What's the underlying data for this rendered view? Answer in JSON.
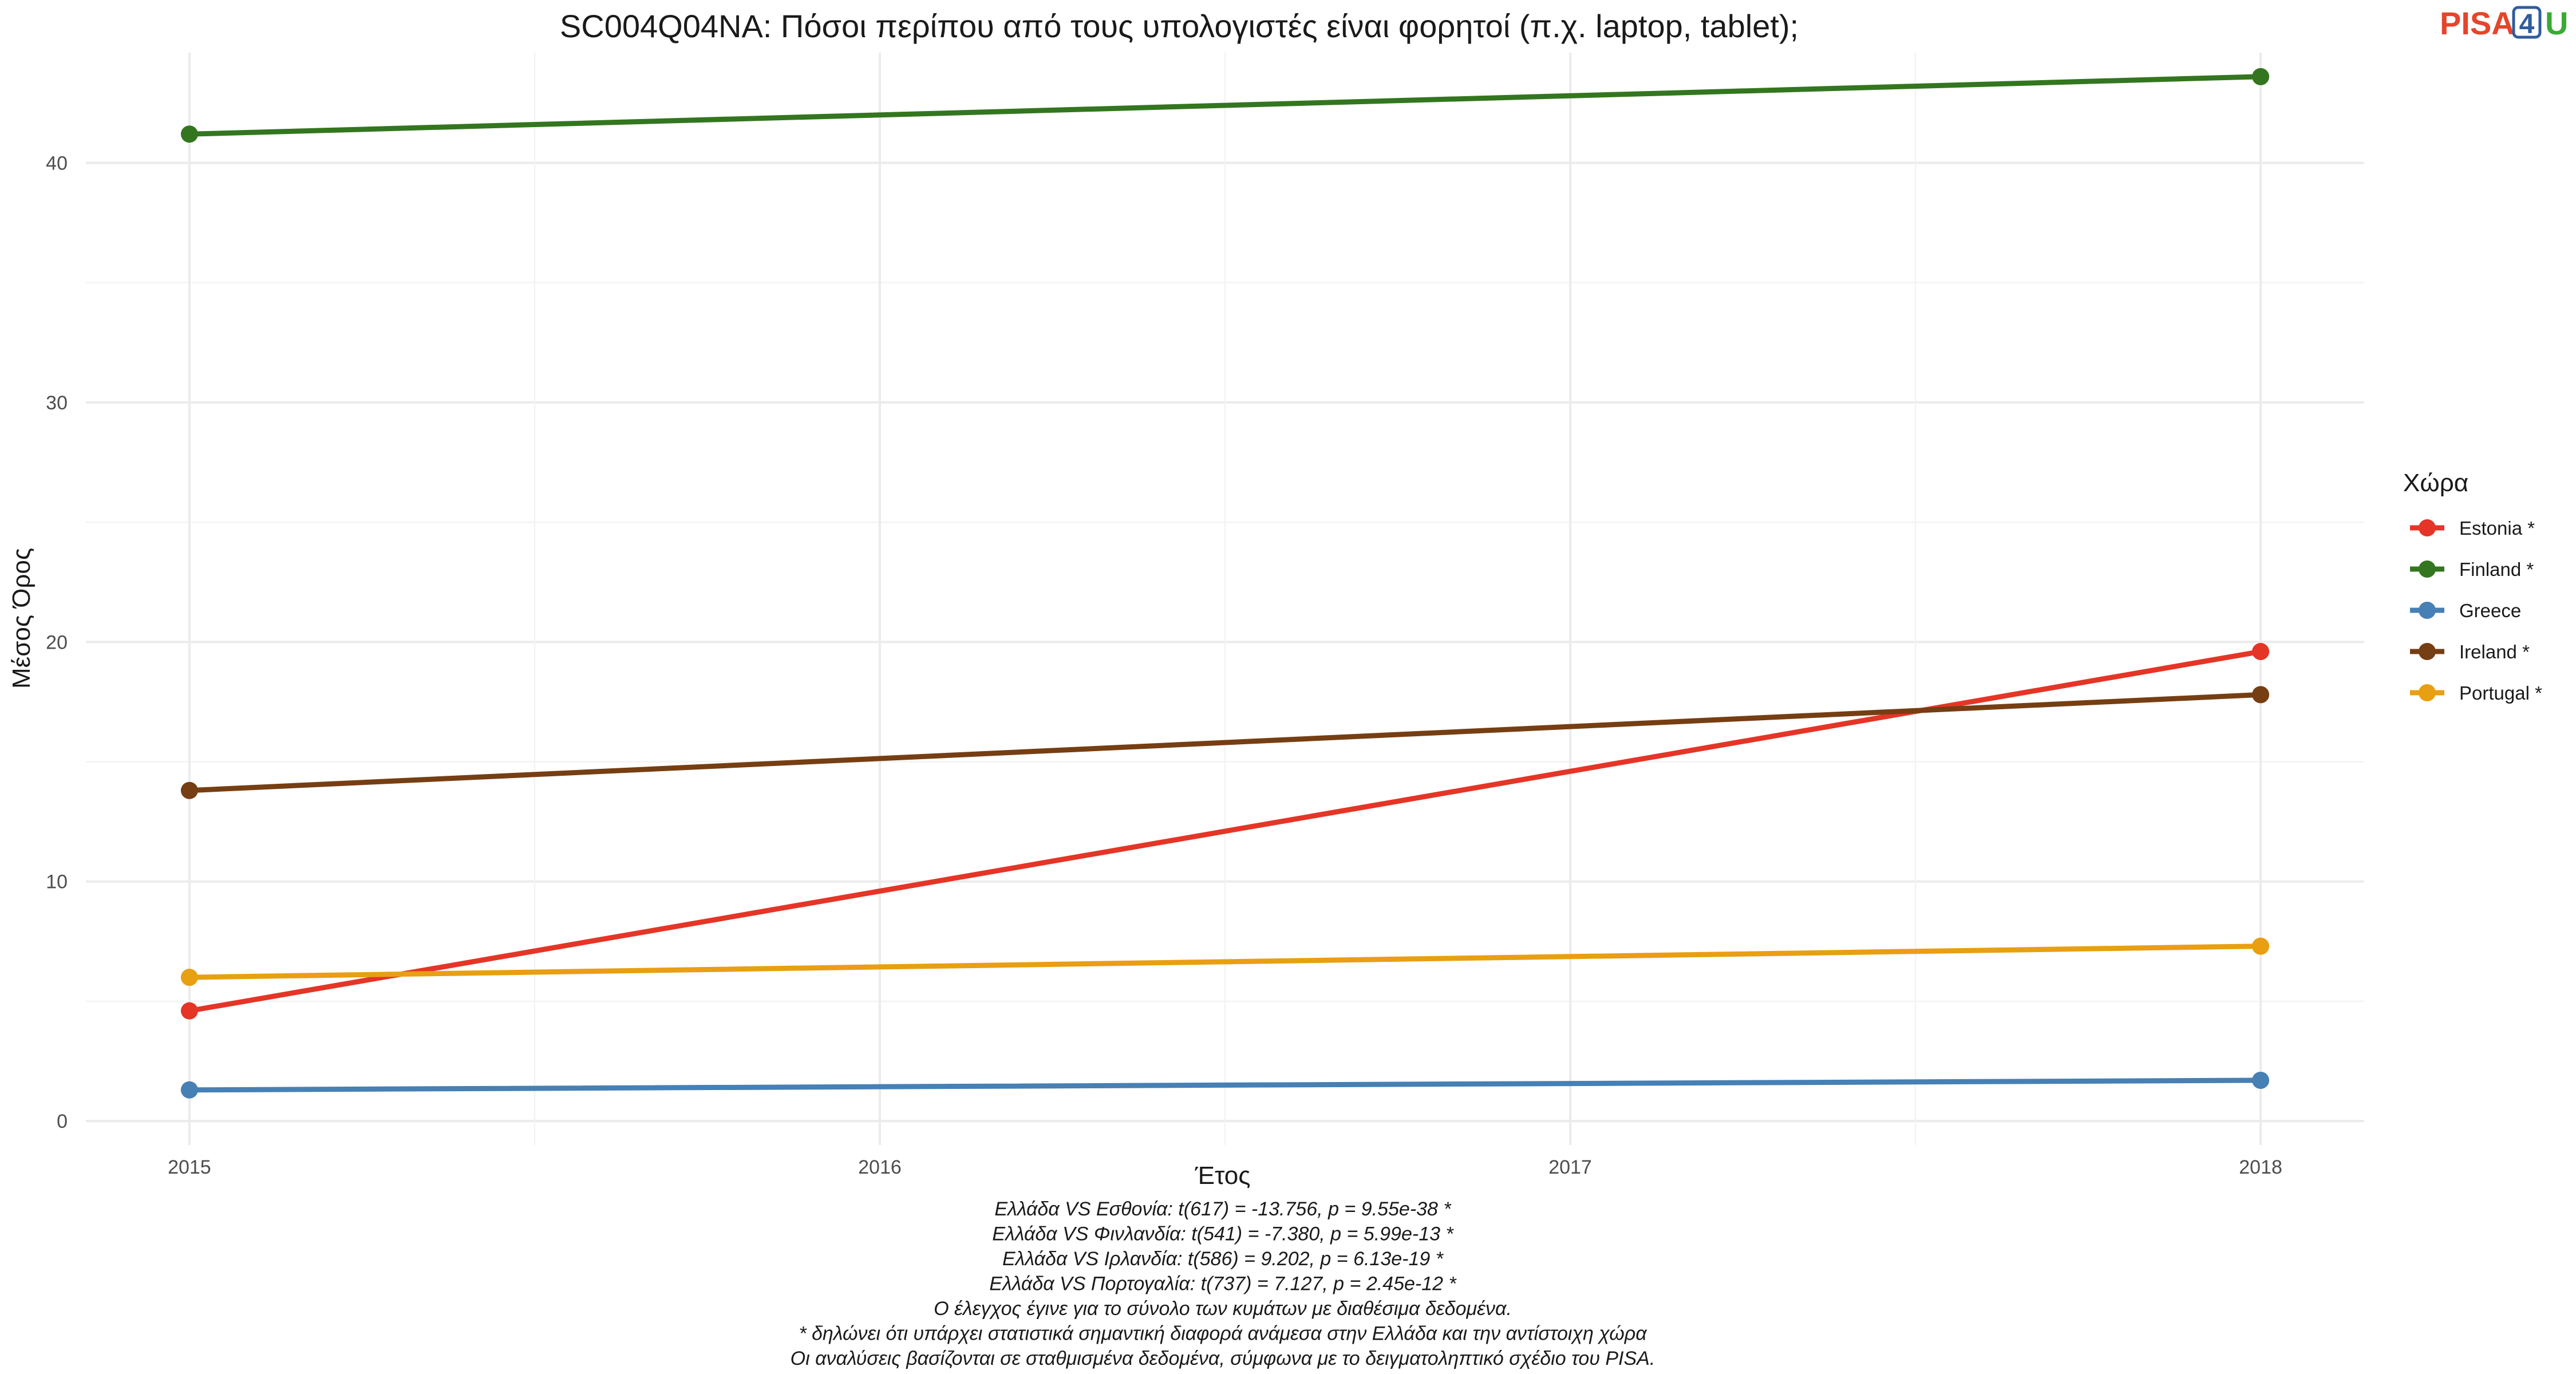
{
  "chart_data": {
    "type": "line",
    "title": "SC004Q04NA: Πόσοι περίπου από τους υπολογιστές είναι φορητοί (π.χ. laptop, tablet);",
    "xlabel": "Έτος",
    "ylabel": "Μέσος Όρος",
    "x": [
      2015,
      2018
    ],
    "x_ticks": [
      "2015",
      "2016",
      "2017",
      "2018"
    ],
    "x_range": [
      2014.85,
      2018.15
    ],
    "y_ticks": [
      "0",
      "10",
      "20",
      "30",
      "40"
    ],
    "ylim": [
      -1,
      44.6
    ],
    "grid": true,
    "legend_title": "Χώρα",
    "legend_position": "right",
    "series": [
      {
        "name": "Estonia *",
        "color": "#e53527",
        "values": [
          4.6,
          19.6
        ]
      },
      {
        "name": "Finland *",
        "color": "#33761f",
        "values": [
          41.2,
          43.6
        ]
      },
      {
        "name": "Greece",
        "color": "#4680b4",
        "values": [
          1.3,
          1.7
        ]
      },
      {
        "name": "Ireland *",
        "color": "#763e13",
        "values": [
          13.8,
          17.8
        ]
      },
      {
        "name": "Portugal *",
        "color": "#e89f12",
        "values": [
          6.0,
          7.3
        ]
      }
    ],
    "captions": [
      "Ελλάδα VS Εσθονία: t(617) = -13.756, p = 9.55e-38 *",
      "Ελλάδα VS Φινλανδία: t(541) = -7.380, p = 5.99e-13 *",
      "Ελλάδα VS Ιρλανδία: t(586) = 9.202, p = 6.13e-19 *",
      "Ελλάδα VS Πορτογαλία: t(737) = 7.127, p = 2.45e-12 *",
      "Ο έλεγχος έγινε για το σύνολο των κυμάτων με διαθέσιμα δεδομένα.",
      "* δηλώνει ότι υπάρχει στατιστικά σημαντική διαφορά ανάμεσα στην Ελλάδα και την αντίστοιχη χώρα",
      "Οι αναλύσεις βασίζονται σε σταθμισμένα δεδομένα, σύμφωνα με το δειγματοληπτικό σχέδιο του PISA."
    ]
  },
  "logo": {
    "text_a": "PISA",
    "text_b": "4",
    "text_c": "U",
    "color_a": "#e5452b",
    "color_b": "#2f5c9e",
    "color_c": "#3aaa35"
  }
}
